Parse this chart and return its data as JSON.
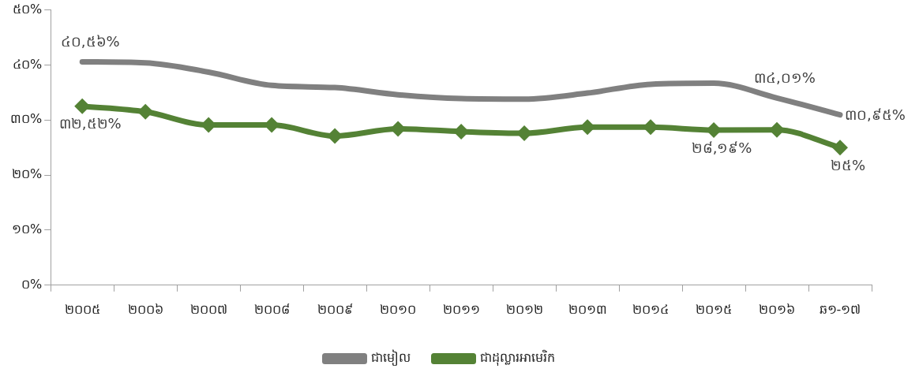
{
  "chart_data": {
    "type": "line",
    "categories": [
      "២០០៥",
      "២០០៦",
      "២០០៧",
      "២០០៨",
      "២០០៩",
      "២០១០",
      "២០១១",
      "២០១២",
      "២០១៣",
      "២០១៤",
      "២០១៥",
      "២០១៦",
      "ឆ១-១៧"
    ],
    "series": [
      {
        "name": "ជាមៀល",
        "color": "#808080",
        "marker": "none",
        "values": [
          40.56,
          40.4,
          38.7,
          36.3,
          35.9,
          34.6,
          33.9,
          33.8,
          34.9,
          36.5,
          36.7,
          34.01,
          30.95
        ],
        "value_labels": [
          "៤០,៥៦%",
          null,
          null,
          null,
          null,
          null,
          null,
          null,
          null,
          null,
          null,
          "៣៤,០១%",
          "៣០,៩៥%"
        ]
      },
      {
        "name": "ជាដុល្លារអាមេរិក",
        "color": "#548235",
        "marker": "diamond",
        "values": [
          32.52,
          31.5,
          29.1,
          29.1,
          27.1,
          28.4,
          27.9,
          27.6,
          28.7,
          28.7,
          28.19,
          28.2,
          25
        ],
        "value_labels": [
          "៣២,៥២%",
          null,
          null,
          null,
          null,
          null,
          null,
          null,
          null,
          null,
          "២៨,១៩%",
          null,
          "២៥%"
        ]
      }
    ],
    "ylim": [
      0,
      50
    ],
    "yticks": [
      {
        "value": 0,
        "label": "០%"
      },
      {
        "value": 10,
        "label": "១០%"
      },
      {
        "value": 20,
        "label": "២០%"
      },
      {
        "value": 30,
        "label": "៣០%"
      },
      {
        "value": 40,
        "label": "៤០%"
      },
      {
        "value": 50,
        "label": "៥០%"
      }
    ],
    "legend": "bottom",
    "grid": false
  }
}
